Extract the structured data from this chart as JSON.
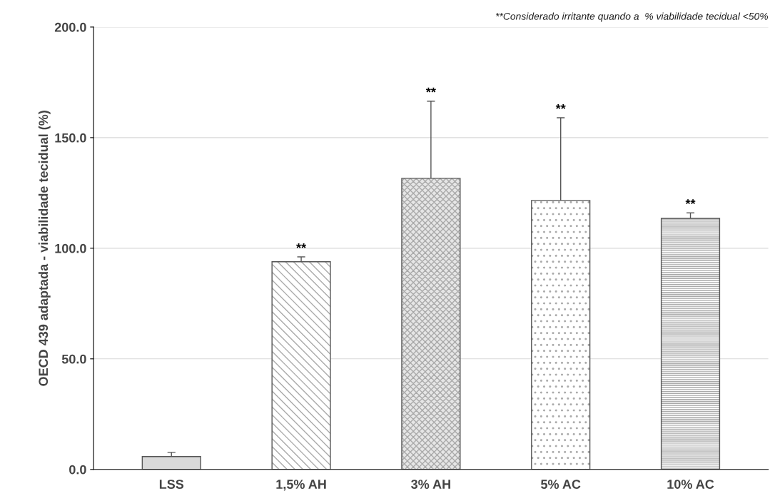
{
  "chart_data": {
    "type": "bar",
    "ylabel": "OECD 439 adaptada - viabilidade tecidual (%)",
    "categories": [
      "LSS",
      "1,5% AH",
      "3% AH",
      "5% AC",
      "10% AC"
    ],
    "values": [
      5.8,
      93.9,
      131.6,
      121.6,
      113.5
    ],
    "errors": [
      1.9,
      2.2,
      34.9,
      37.4,
      2.5
    ],
    "colors": [
      "#d9d9d9",
      "#ffffff",
      "#e6e6e6",
      "#ffffff",
      "#ffffff"
    ],
    "ylim": [
      0,
      200
    ],
    "yticks": [
      {
        "value": 0,
        "label": "0.0"
      },
      {
        "value": 50,
        "label": "50.0"
      },
      {
        "value": 100,
        "label": "100.0"
      },
      {
        "value": 150,
        "label": "150.0"
      },
      {
        "value": 200,
        "label": "200.0"
      }
    ],
    "grid": "y",
    "annotations": [
      "**Considerado irritante quando a  % viabilidade tecidual <50%",
      "**",
      "**",
      "**",
      "**"
    ]
  }
}
